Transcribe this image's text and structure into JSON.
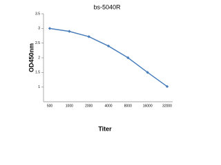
{
  "chart_data": {
    "type": "line",
    "title": "bs-5040R",
    "x_label": "Titer",
    "y_label": "OD450nm",
    "categories": [
      "500",
      "1000",
      "2000",
      "4000",
      "8000",
      "16000",
      "32000"
    ],
    "series": [
      {
        "name": "bs-5040R",
        "color": "#4a7ebb",
        "values": [
          3.0,
          2.9,
          2.72,
          2.4,
          2.0,
          1.5,
          1.02
        ]
      }
    ],
    "ylim": [
      0.5,
      3.5
    ],
    "yticks": [
      1,
      1.5,
      2,
      2.5,
      3,
      3.5
    ],
    "grid": false
  }
}
